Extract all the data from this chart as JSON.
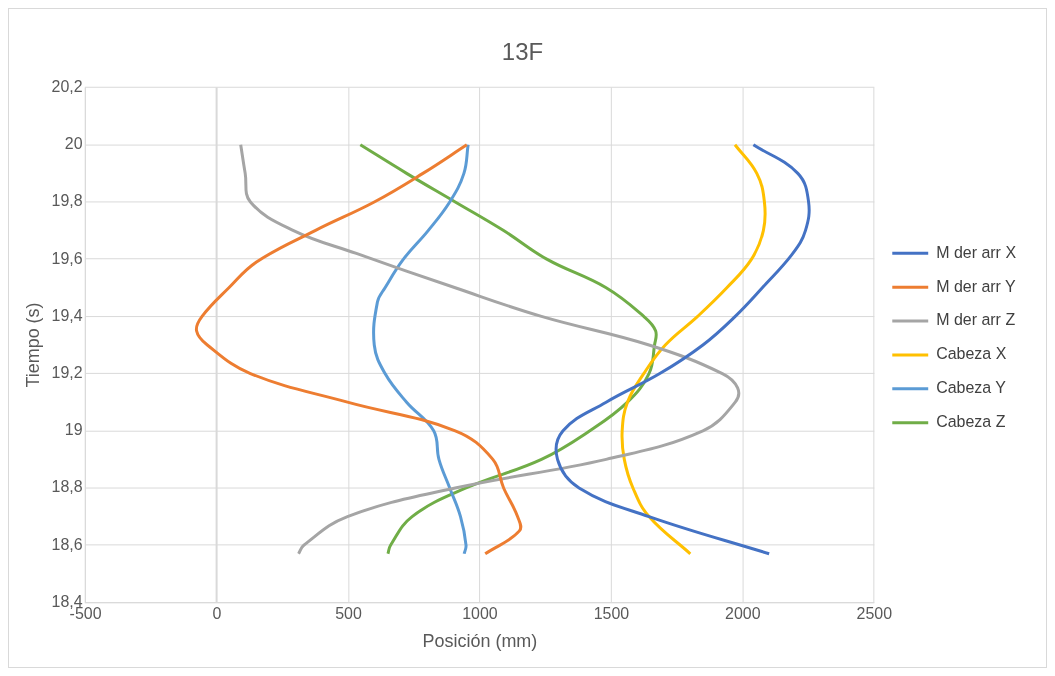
{
  "chart_data": {
    "type": "line",
    "title": "13F",
    "xlabel": "Posición (mm)",
    "ylabel": "Tiempo (s)",
    "xlim": [
      -500,
      2500
    ],
    "xticks": [
      -500,
      0,
      500,
      1000,
      1500,
      2000,
      2500
    ],
    "ylim": [
      18.4,
      20.2
    ],
    "yticks": [
      {
        "value": 18.4,
        "label": "18,4"
      },
      {
        "value": 18.6,
        "label": "18,6"
      },
      {
        "value": 18.8,
        "label": "18,8"
      },
      {
        "value": 19,
        "label": "19"
      },
      {
        "value": 19.2,
        "label": "19,2"
      },
      {
        "value": 19.4,
        "label": "19,4"
      },
      {
        "value": 19.6,
        "label": "19,6"
      },
      {
        "value": 19.8,
        "label": "19,8"
      },
      {
        "value": 20,
        "label": "20"
      },
      {
        "value": 20.2,
        "label": "20,2"
      }
    ],
    "grid": true,
    "legend": "right",
    "marker": "none",
    "line_style": "solid",
    "series": [
      {
        "name": "M der arr X",
        "color": "#4472c4",
        "x": [
          2100,
          1643,
          1377,
          1295,
          1316,
          1480,
          1684,
          1848,
          1971,
          2074,
          2190,
          2238,
          2250,
          2209,
          2040
        ],
        "values": [
          18.57,
          18.7,
          18.8,
          18.9,
          19.0,
          19.1,
          19.2,
          19.3,
          19.4,
          19.5,
          19.62,
          19.7,
          19.8,
          19.9,
          20.0
        ]
      },
      {
        "name": "M der arr Y",
        "color": "#ed7d31",
        "x": [
          1020,
          1150,
          1143,
          1090,
          1049,
          906,
          496,
          127,
          -37,
          -78,
          -57,
          45,
          150,
          373,
          598,
          783,
          950
        ],
        "values": [
          18.57,
          18.65,
          18.7,
          18.8,
          18.9,
          19.0,
          19.1,
          19.2,
          19.3,
          19.35,
          19.4,
          19.5,
          19.59,
          19.7,
          19.8,
          19.9,
          20.0
        ]
      },
      {
        "name": "M der arr Z",
        "color": "#a5a5a5",
        "x": [
          310,
          330,
          496,
          906,
          1480,
          1848,
          1971,
          1980,
          1922,
          1643,
          1234,
          906,
          530,
          291,
          127,
          107,
          90
        ],
        "values": [
          18.57,
          18.6,
          18.7,
          18.8,
          18.9,
          19.0,
          19.1,
          19.15,
          19.2,
          19.3,
          19.4,
          19.5,
          19.62,
          19.7,
          19.8,
          19.9,
          20.0
        ]
      },
      {
        "name": "Cabeza X",
        "color": "#ffc000",
        "x": [
          1800,
          1643,
          1582,
          1549,
          1541,
          1561,
          1623,
          1705,
          1828,
          1939,
          2033,
          2078,
          2082,
          2053,
          1970
        ],
        "values": [
          18.57,
          18.7,
          18.8,
          18.9,
          19.0,
          19.1,
          19.2,
          19.3,
          19.4,
          19.5,
          19.6,
          19.7,
          19.8,
          19.9,
          20.0
        ]
      },
      {
        "name": "Cabeza Y",
        "color": "#5b9bd5",
        "x": [
          940,
          947,
          926,
          885,
          844,
          824,
          721,
          639,
          598,
          610,
          639,
          709,
          803,
          885,
          939,
          955
        ],
        "values": [
          18.57,
          18.6,
          18.7,
          18.8,
          18.9,
          19.0,
          19.1,
          19.2,
          19.3,
          19.45,
          19.5,
          19.6,
          19.7,
          19.8,
          19.9,
          20.0
        ]
      },
      {
        "name": "Cabeza Z",
        "color": "#70ad47",
        "x": [
          650,
          660,
          742,
          947,
          1234,
          1418,
          1561,
          1643,
          1664,
          1668,
          1623,
          1480,
          1254,
          1090,
          906,
          721,
          545
        ],
        "values": [
          18.57,
          18.6,
          18.7,
          18.8,
          18.9,
          19.0,
          19.1,
          19.2,
          19.3,
          19.35,
          19.4,
          19.5,
          19.6,
          19.7,
          19.8,
          19.9,
          20.0
        ]
      }
    ]
  }
}
